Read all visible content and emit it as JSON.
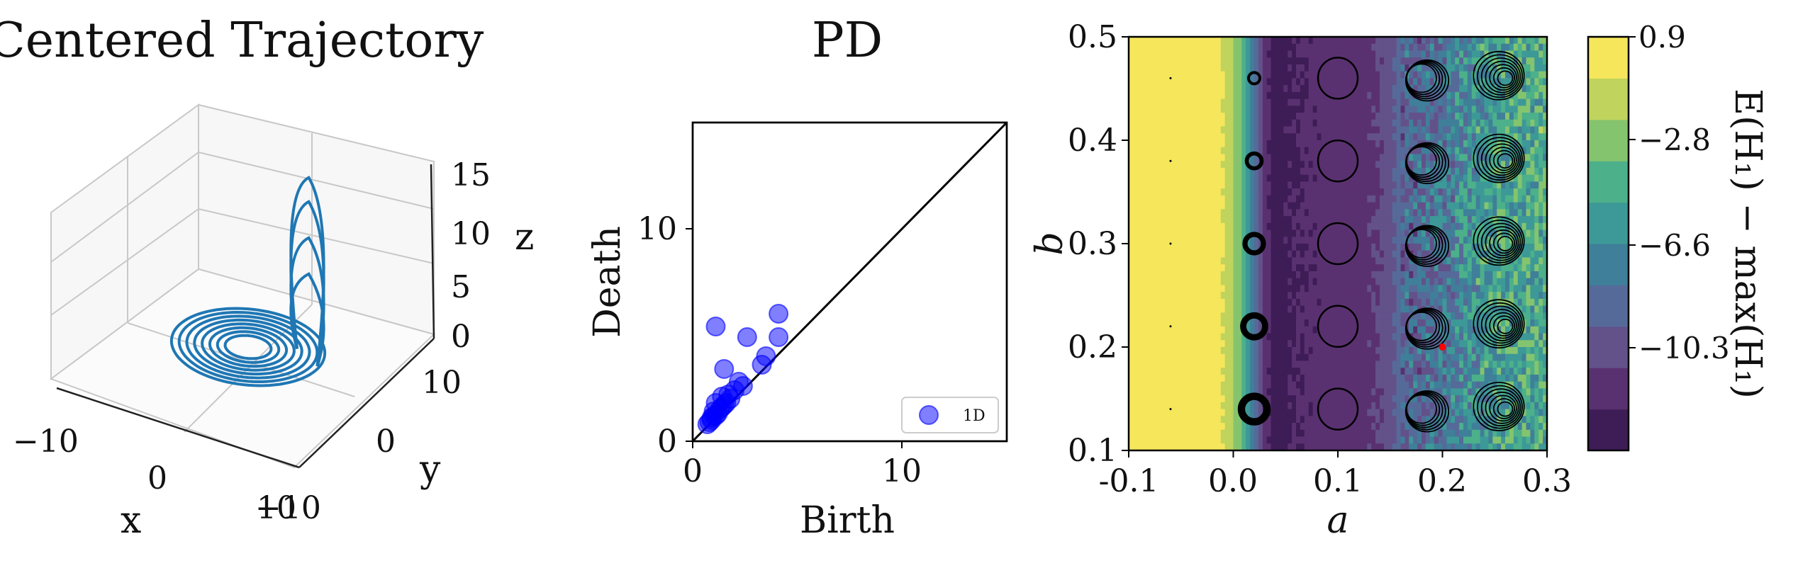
{
  "colors": {
    "trajectory": "#1f77b4",
    "pd_points": "#0000ff",
    "diagonal": "#000000",
    "marker": "#ff0000",
    "colormap": [
      "#3e1c56",
      "#5a3170",
      "#63518a",
      "#566a99",
      "#3f7f99",
      "#3d9997",
      "#4cb08a",
      "#85c46e",
      "#bfd35d",
      "#f5e65c"
    ]
  },
  "chart_data": [
    {
      "type": "line",
      "title": "Centered Trajectory",
      "xlabel": "x",
      "ylabel": "y",
      "zlabel": "z",
      "x_ticks": [
        "−10",
        "0",
        "10"
      ],
      "y_ticks": [
        "−10",
        "0",
        "10"
      ],
      "z_ticks": [
        "0",
        "5",
        "10",
        "15"
      ],
      "xlim": [
        -10,
        10
      ],
      "ylim": [
        -10,
        10
      ],
      "zlim": [
        0,
        15
      ],
      "grid": true,
      "series": [
        {
          "description": "growing spiral in the z≈0 plane with spikes in z",
          "spiral_radii": [
            3,
            4,
            5,
            6,
            7,
            8,
            9,
            10
          ],
          "spike_peaks_z": [
            7,
            10,
            13,
            15
          ]
        }
      ]
    },
    {
      "type": "scatter",
      "title": "PD",
      "xlabel": "Birth",
      "ylabel": "Death",
      "x_ticks": [
        "0",
        "10"
      ],
      "y_ticks": [
        "0",
        "10"
      ],
      "xlim": [
        0,
        15
      ],
      "ylim": [
        0,
        15
      ],
      "legend": {
        "placement": "bottom-right",
        "entries": [
          "1D"
        ]
      },
      "series": [
        {
          "name": "1D",
          "points": [
            [
              1.1,
              5.4
            ],
            [
              4.1,
              6.0
            ],
            [
              2.6,
              4.9
            ],
            [
              4.1,
              4.9
            ],
            [
              1.5,
              3.4
            ],
            [
              3.5,
              4.0
            ],
            [
              3.3,
              3.6
            ],
            [
              2.2,
              2.8
            ],
            [
              2.0,
              2.4
            ],
            [
              1.7,
              2.2
            ],
            [
              1.4,
              2.1
            ],
            [
              1.1,
              1.8
            ],
            [
              1.5,
              1.7
            ],
            [
              1.8,
              2.0
            ],
            [
              1.0,
              1.4
            ],
            [
              1.3,
              1.5
            ],
            [
              1.2,
              1.3
            ],
            [
              0.9,
              1.1
            ],
            [
              1.0,
              1.2
            ],
            [
              0.8,
              0.9
            ],
            [
              0.9,
              1.0
            ],
            [
              1.1,
              1.2
            ],
            [
              1.4,
              1.6
            ],
            [
              1.6,
              1.8
            ],
            [
              2.4,
              2.6
            ],
            [
              0.7,
              0.8
            ]
          ]
        }
      ],
      "diagonal": [
        [
          0,
          0
        ],
        [
          15,
          15
        ]
      ]
    },
    {
      "type": "heatmap",
      "xlabel": "a",
      "ylabel": "b",
      "x_ticks": [
        "-0.1",
        "0.0",
        "0.1",
        "0.2",
        "0.3"
      ],
      "y_ticks": [
        "0.1",
        "0.2",
        "0.3",
        "0.4",
        "0.5"
      ],
      "xlim": [
        -0.1,
        0.3
      ],
      "ylim": [
        0.1,
        0.5
      ],
      "colorbar": {
        "label": "E(H₁) − max(H₁)",
        "ticks": [
          "0.9",
          "−2.8",
          "−6.6",
          "−10.3"
        ],
        "tick_values": [
          0.9,
          -2.8,
          -6.6,
          -10.3
        ],
        "range": [
          -14,
          0.9
        ]
      },
      "column_profile": {
        "a": [
          -0.1,
          -0.02,
          0.0,
          0.01,
          0.02,
          0.03,
          0.04,
          0.06,
          0.1,
          0.14,
          0.16,
          0.2,
          0.22,
          0.26,
          0.3
        ],
        "value": [
          0.9,
          0.9,
          -2.0,
          -4.0,
          -8.5,
          -12.0,
          -13.0,
          -12.5,
          -12.0,
          -11.0,
          -9.0,
          -8.0,
          -6.5,
          -5.0,
          -4.5
        ]
      },
      "inset_trajectories": {
        "a_positions": [
          -0.06,
          0.02,
          0.1,
          0.18,
          0.26
        ],
        "b_positions": [
          0.46,
          0.38,
          0.3,
          0.22,
          0.14
        ]
      },
      "marker": {
        "a": 0.2,
        "b": 0.2
      }
    }
  ]
}
